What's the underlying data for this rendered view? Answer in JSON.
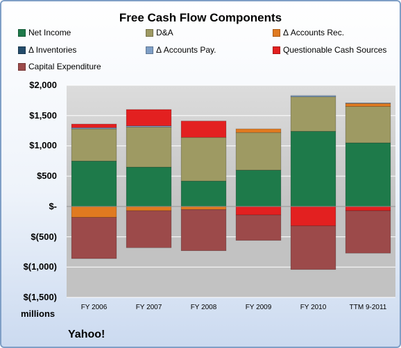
{
  "chart_data": {
    "type": "bar",
    "stacked": true,
    "title": "Free Cash Flow Components",
    "categories": [
      "FY 2006",
      "FY 2007",
      "FY 2008",
      "FY 2009",
      "FY 2010",
      "TTM 9-2011"
    ],
    "series": [
      {
        "name": "Net Income",
        "color": "#1e7a4a",
        "values": [
          750,
          650,
          420,
          600,
          1240,
          1050
        ]
      },
      {
        "name": "D&A",
        "color": "#9e9a63",
        "values": [
          530,
          660,
          720,
          620,
          570,
          600
        ]
      },
      {
        "name": "Δ Accounts Rec.",
        "color": "#e07a20",
        "values": [
          -180,
          -70,
          -50,
          60,
          0,
          50
        ]
      },
      {
        "name": "Δ Inventories",
        "color": "#244c6b",
        "values": [
          0,
          0,
          0,
          0,
          0,
          0
        ]
      },
      {
        "name": "Δ Accounts Pay.",
        "color": "#7f9fc6",
        "values": [
          20,
          20,
          0,
          0,
          20,
          10
        ]
      },
      {
        "name": "Questionable Cash Sources",
        "color": "#e32020",
        "values": [
          60,
          270,
          270,
          0,
          -320,
          -70
        ]
      },
      {
        "name": "Capital Expenditure",
        "color": "#9c4a4a",
        "values": [
          -680,
          -610,
          -680,
          -420,
          -720,
          -700
        ]
      }
    ],
    "negative_extra": [
      0,
      0,
      0,
      -140,
      0,
      0
    ],
    "y_ticks": [
      "$2,000",
      "$1,500",
      "$1,000",
      "$500",
      "$-",
      "$(500)",
      "$(1,000)",
      "$(1,500)"
    ],
    "ylim": [
      -1500,
      2000
    ],
    "units_label": "millions",
    "company": "Yahoo!",
    "grid": true,
    "legend_position": "top"
  }
}
